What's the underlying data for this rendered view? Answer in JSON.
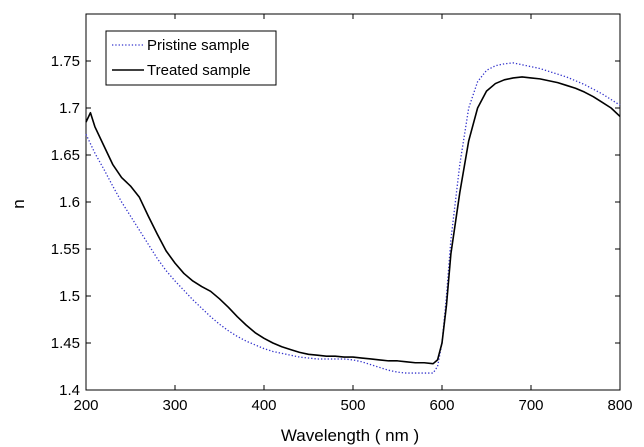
{
  "chart_data": {
    "type": "line",
    "xlabel": "Wavelength ( nm )",
    "ylabel": "n",
    "xlim": [
      200,
      800
    ],
    "ylim": [
      1.4,
      1.8
    ],
    "xticks": [
      200,
      300,
      400,
      500,
      600,
      700,
      800
    ],
    "yticks": [
      1.4,
      1.45,
      1.5,
      1.55,
      1.6,
      1.65,
      1.7,
      1.75
    ],
    "xtick_labels": [
      "200",
      "300",
      "400",
      "500",
      "600",
      "700",
      "800"
    ],
    "ytick_labels": [
      "1.4",
      "1.45",
      "1.5",
      "1.55",
      "1.6",
      "1.65",
      "1.7",
      "1.75"
    ],
    "grid": false,
    "legend_position": "top-left",
    "series": [
      {
        "name": "Pristine sample",
        "style": "dotted",
        "color": "#3333cc",
        "x": [
          200,
          210,
          220,
          230,
          240,
          250,
          260,
          270,
          280,
          290,
          300,
          310,
          320,
          330,
          340,
          350,
          360,
          370,
          380,
          390,
          400,
          410,
          420,
          430,
          440,
          450,
          460,
          470,
          480,
          490,
          500,
          510,
          520,
          530,
          540,
          550,
          560,
          570,
          580,
          590,
          595,
          600,
          605,
          610,
          620,
          630,
          640,
          650,
          660,
          670,
          680,
          690,
          700,
          710,
          720,
          730,
          740,
          750,
          760,
          770,
          780,
          790,
          800
        ],
        "y": [
          1.672,
          1.652,
          1.635,
          1.617,
          1.6,
          1.585,
          1.57,
          1.555,
          1.54,
          1.527,
          1.516,
          1.506,
          1.496,
          1.487,
          1.478,
          1.47,
          1.463,
          1.457,
          1.452,
          1.448,
          1.444,
          1.441,
          1.439,
          1.437,
          1.435,
          1.434,
          1.433,
          1.433,
          1.433,
          1.433,
          1.432,
          1.43,
          1.427,
          1.424,
          1.421,
          1.419,
          1.418,
          1.418,
          1.418,
          1.418,
          1.425,
          1.45,
          1.5,
          1.56,
          1.64,
          1.7,
          1.728,
          1.74,
          1.745,
          1.747,
          1.748,
          1.746,
          1.744,
          1.742,
          1.739,
          1.736,
          1.733,
          1.729,
          1.725,
          1.72,
          1.715,
          1.709,
          1.703
        ]
      },
      {
        "name": "Treated sample",
        "style": "solid",
        "color": "#000000",
        "x": [
          200,
          205,
          210,
          220,
          230,
          240,
          250,
          260,
          270,
          280,
          290,
          300,
          310,
          320,
          330,
          340,
          350,
          360,
          370,
          380,
          390,
          400,
          410,
          420,
          430,
          440,
          450,
          460,
          470,
          480,
          490,
          500,
          510,
          520,
          530,
          540,
          550,
          560,
          570,
          580,
          590,
          595,
          600,
          605,
          610,
          620,
          630,
          640,
          650,
          660,
          670,
          680,
          690,
          700,
          710,
          720,
          730,
          740,
          750,
          760,
          770,
          780,
          790,
          800
        ],
        "y": [
          1.685,
          1.695,
          1.68,
          1.66,
          1.64,
          1.626,
          1.617,
          1.605,
          1.585,
          1.566,
          1.548,
          1.535,
          1.524,
          1.516,
          1.51,
          1.505,
          1.497,
          1.488,
          1.478,
          1.469,
          1.461,
          1.455,
          1.45,
          1.446,
          1.443,
          1.44,
          1.438,
          1.437,
          1.436,
          1.436,
          1.435,
          1.435,
          1.434,
          1.433,
          1.432,
          1.431,
          1.431,
          1.43,
          1.429,
          1.429,
          1.428,
          1.432,
          1.45,
          1.49,
          1.545,
          1.61,
          1.665,
          1.7,
          1.718,
          1.726,
          1.73,
          1.732,
          1.733,
          1.732,
          1.731,
          1.729,
          1.727,
          1.724,
          1.721,
          1.717,
          1.712,
          1.706,
          1.7,
          1.691
        ]
      }
    ]
  }
}
